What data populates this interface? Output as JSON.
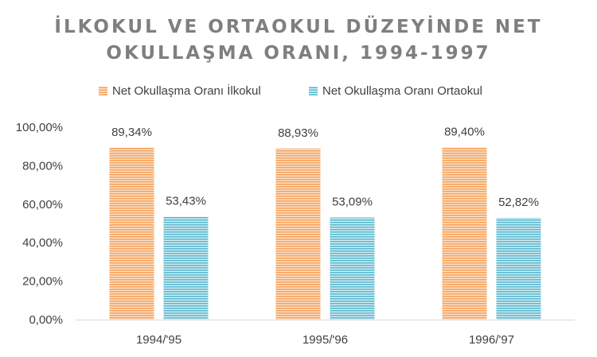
{
  "chart_data": {
    "type": "bar",
    "title_lines": [
      "İLKOKUL VE ORTAOKUL DÜZEYİNDE NET",
      "OKULLAŞMA ORANI, 1994-1997"
    ],
    "categories": [
      "1994/'95",
      "1995/'96",
      "1996/'97"
    ],
    "series": [
      {
        "name": "Net Okullaşma Oranı İlkokul",
        "color": "#f5a25d",
        "stripe_color": "#fde3cc",
        "values": [
          89.34,
          88.93,
          89.4
        ],
        "labels": [
          "89,34%",
          "88,93%",
          "89,40%"
        ]
      },
      {
        "name": "Net Okullaşma Oranı Ortaokul",
        "color": "#5bb8ce",
        "stripe_color": "#d6eef5",
        "values": [
          53.43,
          53.09,
          52.82
        ],
        "labels": [
          "53,43%",
          "53,09%",
          "52,82%"
        ]
      }
    ],
    "yticks": [
      "0,00%",
      "20,00%",
      "40,00%",
      "60,00%",
      "80,00%",
      "100,00%"
    ],
    "ylim": [
      0,
      100
    ],
    "grid": false,
    "legend_position": "top"
  }
}
